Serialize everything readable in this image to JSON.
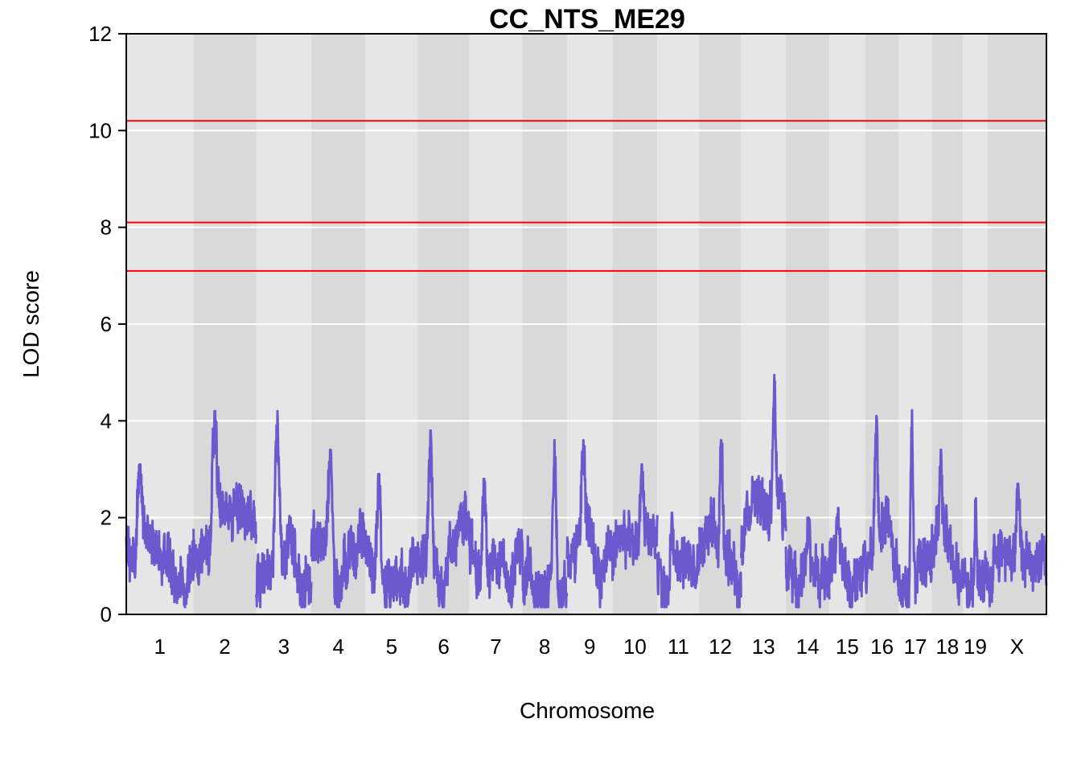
{
  "chart_data": {
    "type": "line",
    "title": "CC_NTS_ME29",
    "xlabel": "Chromosome",
    "ylabel": "LOD score",
    "ylim": [
      0,
      12
    ],
    "yticks": [
      0,
      2,
      4,
      6,
      8,
      10,
      12
    ],
    "grid": true,
    "series_color": "#6A5ACD",
    "threshold_color": "#FF0000",
    "thresholds": [
      10.2,
      8.1,
      7.1
    ],
    "chromosomes": [
      {
        "label": "1",
        "start": 0,
        "end": 195,
        "peak": 3.1
      },
      {
        "label": "2",
        "start": 195,
        "end": 377,
        "peak": 4.2
      },
      {
        "label": "3",
        "start": 377,
        "end": 537,
        "peak": 4.2
      },
      {
        "label": "4",
        "start": 537,
        "end": 694,
        "peak": 3.4
      },
      {
        "label": "5",
        "start": 694,
        "end": 846,
        "peak": 2.9
      },
      {
        "label": "6",
        "start": 846,
        "end": 996,
        "peak": 3.8
      },
      {
        "label": "7",
        "start": 996,
        "end": 1149,
        "peak": 2.8
      },
      {
        "label": "8",
        "start": 1149,
        "end": 1279,
        "peak": 3.6
      },
      {
        "label": "9",
        "start": 1279,
        "end": 1411,
        "peak": 3.6
      },
      {
        "label": "10",
        "start": 1411,
        "end": 1541,
        "peak": 3.1
      },
      {
        "label": "11",
        "start": 1541,
        "end": 1663,
        "peak": 2.1
      },
      {
        "label": "12",
        "start": 1663,
        "end": 1784,
        "peak": 3.6
      },
      {
        "label": "13",
        "start": 1784,
        "end": 1914,
        "peak": 4.95
      },
      {
        "label": "14",
        "start": 1914,
        "end": 2040,
        "peak": 2.0
      },
      {
        "label": "15",
        "start": 2040,
        "end": 2144,
        "peak": 2.2
      },
      {
        "label": "16",
        "start": 2144,
        "end": 2242,
        "peak": 4.1
      },
      {
        "label": "17",
        "start": 2242,
        "end": 2337,
        "peak": 4.3
      },
      {
        "label": "18",
        "start": 2337,
        "end": 2428,
        "peak": 3.4
      },
      {
        "label": "19",
        "start": 2428,
        "end": 2499,
        "peak": 2.4
      },
      {
        "label": "X",
        "start": 2499,
        "end": 2670,
        "peak": 2.7
      }
    ]
  }
}
